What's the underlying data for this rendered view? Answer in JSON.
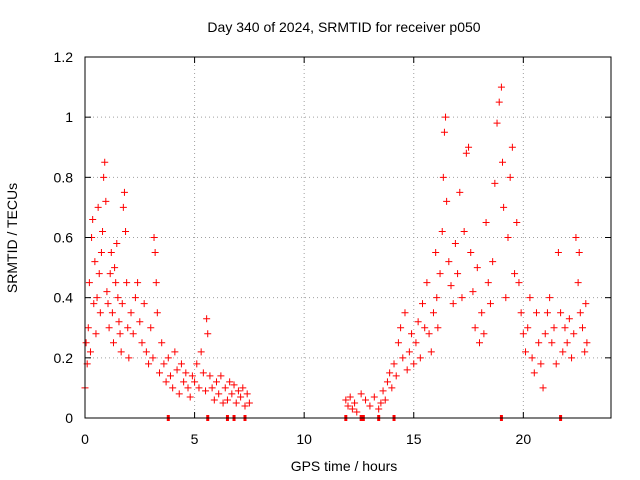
{
  "chart_data": {
    "type": "scatter",
    "title": "Day 340 of 2024, SRMTID for receiver p050",
    "xlabel": "GPS time / hours",
    "ylabel": "SRMTID / TECUs",
    "xlim": [
      0,
      24
    ],
    "ylim": [
      0,
      1.2
    ],
    "xticks": [
      0,
      5,
      10,
      15,
      20
    ],
    "xtick_labels": [
      "0",
      "5",
      "10",
      "15",
      "20"
    ],
    "yticks": [
      0,
      0.2,
      0.4,
      0.6,
      0.8,
      1.0,
      1.2
    ],
    "ytick_labels": [
      "0",
      "0.2",
      "0.4",
      "0.6",
      "0.8",
      "1",
      "1.2"
    ],
    "grid": true,
    "marker": "+",
    "color": "#ff0000",
    "series": [
      {
        "name": "SRMTID",
        "points": [
          [
            0.0,
            0.1
          ],
          [
            0.05,
            0.25
          ],
          [
            0.1,
            0.18
          ],
          [
            0.15,
            0.3
          ],
          [
            0.2,
            0.45
          ],
          [
            0.25,
            0.22
          ],
          [
            0.3,
            0.6
          ],
          [
            0.35,
            0.66
          ],
          [
            0.4,
            0.38
          ],
          [
            0.45,
            0.52
          ],
          [
            0.5,
            0.28
          ],
          [
            0.55,
            0.4
          ],
          [
            0.6,
            0.7
          ],
          [
            0.65,
            0.48
          ],
          [
            0.7,
            0.35
          ],
          [
            0.75,
            0.55
          ],
          [
            0.8,
            0.62
          ],
          [
            0.85,
            0.8
          ],
          [
            0.9,
            0.85
          ],
          [
            0.95,
            0.72
          ],
          [
            1.0,
            0.42
          ],
          [
            1.05,
            0.38
          ],
          [
            1.1,
            0.3
          ],
          [
            1.15,
            0.48
          ],
          [
            1.2,
            0.55
          ],
          [
            1.25,
            0.35
          ],
          [
            1.3,
            0.25
          ],
          [
            1.35,
            0.5
          ],
          [
            1.4,
            0.45
          ],
          [
            1.45,
            0.58
          ],
          [
            1.5,
            0.4
          ],
          [
            1.55,
            0.32
          ],
          [
            1.6,
            0.28
          ],
          [
            1.65,
            0.22
          ],
          [
            1.7,
            0.38
          ],
          [
            1.75,
            0.7
          ],
          [
            1.8,
            0.75
          ],
          [
            1.85,
            0.62
          ],
          [
            1.9,
            0.45
          ],
          [
            1.95,
            0.3
          ],
          [
            2.0,
            0.2
          ],
          [
            2.1,
            0.35
          ],
          [
            2.2,
            0.28
          ],
          [
            2.3,
            0.4
          ],
          [
            2.4,
            0.45
          ],
          [
            2.5,
            0.32
          ],
          [
            2.6,
            0.25
          ],
          [
            2.7,
            0.38
          ],
          [
            2.8,
            0.22
          ],
          [
            2.9,
            0.18
          ],
          [
            3.0,
            0.3
          ],
          [
            3.1,
            0.2
          ],
          [
            3.15,
            0.6
          ],
          [
            3.2,
            0.55
          ],
          [
            3.25,
            0.45
          ],
          [
            3.3,
            0.35
          ],
          [
            3.4,
            0.15
          ],
          [
            3.5,
            0.25
          ],
          [
            3.6,
            0.18
          ],
          [
            3.7,
            0.12
          ],
          [
            3.8,
            0.2
          ],
          [
            3.9,
            0.14
          ],
          [
            4.0,
            0.1
          ],
          [
            4.1,
            0.22
          ],
          [
            4.2,
            0.16
          ],
          [
            4.3,
            0.08
          ],
          [
            4.4,
            0.18
          ],
          [
            4.5,
            0.12
          ],
          [
            4.6,
            0.15
          ],
          [
            4.7,
            0.1
          ],
          [
            4.8,
            0.07
          ],
          [
            4.9,
            0.14
          ],
          [
            5.0,
            0.12
          ],
          [
            5.1,
            0.18
          ],
          [
            5.2,
            0.1
          ],
          [
            5.3,
            0.22
          ],
          [
            5.4,
            0.15
          ],
          [
            5.5,
            0.09
          ],
          [
            5.55,
            0.33
          ],
          [
            5.6,
            0.28
          ],
          [
            5.7,
            0.14
          ],
          [
            5.8,
            0.1
          ],
          [
            5.9,
            0.06
          ],
          [
            6.0,
            0.12
          ],
          [
            6.1,
            0.08
          ],
          [
            6.2,
            0.14
          ],
          [
            6.3,
            0.05
          ],
          [
            6.4,
            0.1
          ],
          [
            6.5,
            0.06
          ],
          [
            6.6,
            0.12
          ],
          [
            6.7,
            0.08
          ],
          [
            6.8,
            0.11
          ],
          [
            6.9,
            0.05
          ],
          [
            7.0,
            0.09
          ],
          [
            7.1,
            0.07
          ],
          [
            7.2,
            0.1
          ],
          [
            7.3,
            0.04
          ],
          [
            7.4,
            0.08
          ],
          [
            7.5,
            0.05
          ],
          [
            11.9,
            0.06
          ],
          [
            12.0,
            0.04
          ],
          [
            12.1,
            0.07
          ],
          [
            12.2,
            0.03
          ],
          [
            12.3,
            0.05
          ],
          [
            12.4,
            0.02
          ],
          [
            12.6,
            0.08
          ],
          [
            12.8,
            0.06
          ],
          [
            13.0,
            0.04
          ],
          [
            13.2,
            0.07
          ],
          [
            13.4,
            0.03
          ],
          [
            13.5,
            0.05
          ],
          [
            13.6,
            0.09
          ],
          [
            13.7,
            0.06
          ],
          [
            13.8,
            0.12
          ],
          [
            13.9,
            0.15
          ],
          [
            14.0,
            0.1
          ],
          [
            14.1,
            0.18
          ],
          [
            14.2,
            0.14
          ],
          [
            14.3,
            0.25
          ],
          [
            14.4,
            0.3
          ],
          [
            14.5,
            0.2
          ],
          [
            14.6,
            0.35
          ],
          [
            14.7,
            0.16
          ],
          [
            14.8,
            0.22
          ],
          [
            14.9,
            0.28
          ],
          [
            15.0,
            0.18
          ],
          [
            15.1,
            0.25
          ],
          [
            15.2,
            0.32
          ],
          [
            15.3,
            0.2
          ],
          [
            15.4,
            0.38
          ],
          [
            15.5,
            0.3
          ],
          [
            15.6,
            0.45
          ],
          [
            15.7,
            0.28
          ],
          [
            15.8,
            0.22
          ],
          [
            15.9,
            0.35
          ],
          [
            16.0,
            0.55
          ],
          [
            16.05,
            0.4
          ],
          [
            16.1,
            0.3
          ],
          [
            16.2,
            0.48
          ],
          [
            16.3,
            0.62
          ],
          [
            16.35,
            0.8
          ],
          [
            16.4,
            0.95
          ],
          [
            16.45,
            1.0
          ],
          [
            16.5,
            0.72
          ],
          [
            16.6,
            0.52
          ],
          [
            16.7,
            0.44
          ],
          [
            16.8,
            0.38
          ],
          [
            16.9,
            0.58
          ],
          [
            17.0,
            0.48
          ],
          [
            17.1,
            0.75
          ],
          [
            17.2,
            0.4
          ],
          [
            17.3,
            0.62
          ],
          [
            17.4,
            0.88
          ],
          [
            17.5,
            0.9
          ],
          [
            17.6,
            0.55
          ],
          [
            17.7,
            0.42
          ],
          [
            17.8,
            0.3
          ],
          [
            17.9,
            0.5
          ],
          [
            18.0,
            0.25
          ],
          [
            18.1,
            0.35
          ],
          [
            18.2,
            0.28
          ],
          [
            18.3,
            0.65
          ],
          [
            18.4,
            0.45
          ],
          [
            18.5,
            0.38
          ],
          [
            18.6,
            0.52
          ],
          [
            18.7,
            0.78
          ],
          [
            18.8,
            0.98
          ],
          [
            18.9,
            1.05
          ],
          [
            19.0,
            1.1
          ],
          [
            19.05,
            0.85
          ],
          [
            19.1,
            0.7
          ],
          [
            19.2,
            0.4
          ],
          [
            19.3,
            0.6
          ],
          [
            19.4,
            0.8
          ],
          [
            19.5,
            0.9
          ],
          [
            19.6,
            0.48
          ],
          [
            19.7,
            0.65
          ],
          [
            19.8,
            0.45
          ],
          [
            19.9,
            0.35
          ],
          [
            20.0,
            0.28
          ],
          [
            20.1,
            0.22
          ],
          [
            20.2,
            0.3
          ],
          [
            20.3,
            0.4
          ],
          [
            20.4,
            0.2
          ],
          [
            20.5,
            0.15
          ],
          [
            20.6,
            0.35
          ],
          [
            20.7,
            0.25
          ],
          [
            20.8,
            0.18
          ],
          [
            20.9,
            0.1
          ],
          [
            21.0,
            0.28
          ],
          [
            21.1,
            0.35
          ],
          [
            21.2,
            0.4
          ],
          [
            21.3,
            0.25
          ],
          [
            21.4,
            0.3
          ],
          [
            21.5,
            0.18
          ],
          [
            21.6,
            0.55
          ],
          [
            21.7,
            0.35
          ],
          [
            21.8,
            0.22
          ],
          [
            21.9,
            0.3
          ],
          [
            22.0,
            0.25
          ],
          [
            22.1,
            0.33
          ],
          [
            22.2,
            0.2
          ],
          [
            22.3,
            0.28
          ],
          [
            22.4,
            0.6
          ],
          [
            22.5,
            0.45
          ],
          [
            22.55,
            0.55
          ],
          [
            22.6,
            0.35
          ],
          [
            22.7,
            0.3
          ],
          [
            22.8,
            0.22
          ],
          [
            22.85,
            0.38
          ],
          [
            22.9,
            0.25
          ]
        ]
      }
    ],
    "rug_x": [
      3.8,
      5.6,
      6.5,
      6.8,
      7.3,
      11.9,
      12.6,
      12.7,
      13.4,
      14.1,
      19.0,
      21.7
    ]
  }
}
